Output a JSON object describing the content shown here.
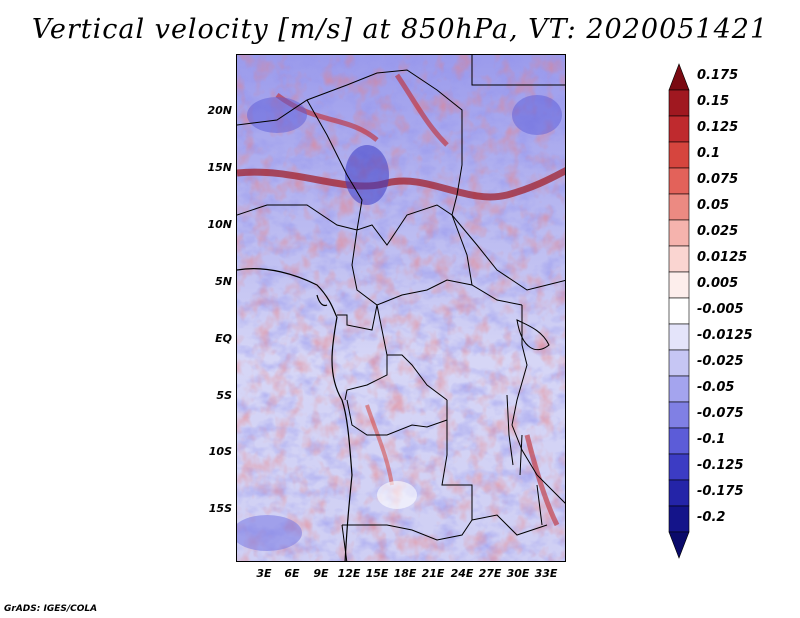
{
  "title": "Vertical velocity [m/s] at 850hPa, VT: 2020051421",
  "map": {
    "variable": "Vertical velocity",
    "units": "m/s",
    "level": "850hPa",
    "valid_time": "2020051421",
    "lat_labels": [
      "20N",
      "15N",
      "10N",
      "5N",
      "EQ",
      "5S",
      "10S",
      "15S"
    ],
    "lon_labels": [
      "3E",
      "6E",
      "9E",
      "12E",
      "15E",
      "18E",
      "21E",
      "24E",
      "27E",
      "30E",
      "33E"
    ]
  },
  "colorbar": {
    "labels": [
      "0.175",
      "0.15",
      "0.125",
      "0.1",
      "0.075",
      "0.05",
      "0.025",
      "0.0125",
      "0.005",
      "-0.005",
      "-0.0125",
      "-0.025",
      "-0.05",
      "-0.075",
      "-0.1",
      "-0.125",
      "-0.175",
      "-0.2"
    ],
    "colors": [
      "#7a0a12",
      "#a01820",
      "#bf2a2e",
      "#d6453e",
      "#e3625a",
      "#ec8a82",
      "#f5b3ad",
      "#fad5d1",
      "#fdeeec",
      "#ffffff",
      "#e4e4fa",
      "#c6c6f4",
      "#a4a4ee",
      "#8080e4",
      "#5c5cd8",
      "#3c3cc4",
      "#2424a8",
      "#14148a",
      "#0a0a6a"
    ]
  },
  "credit": "GrADS: IGES/COLA"
}
